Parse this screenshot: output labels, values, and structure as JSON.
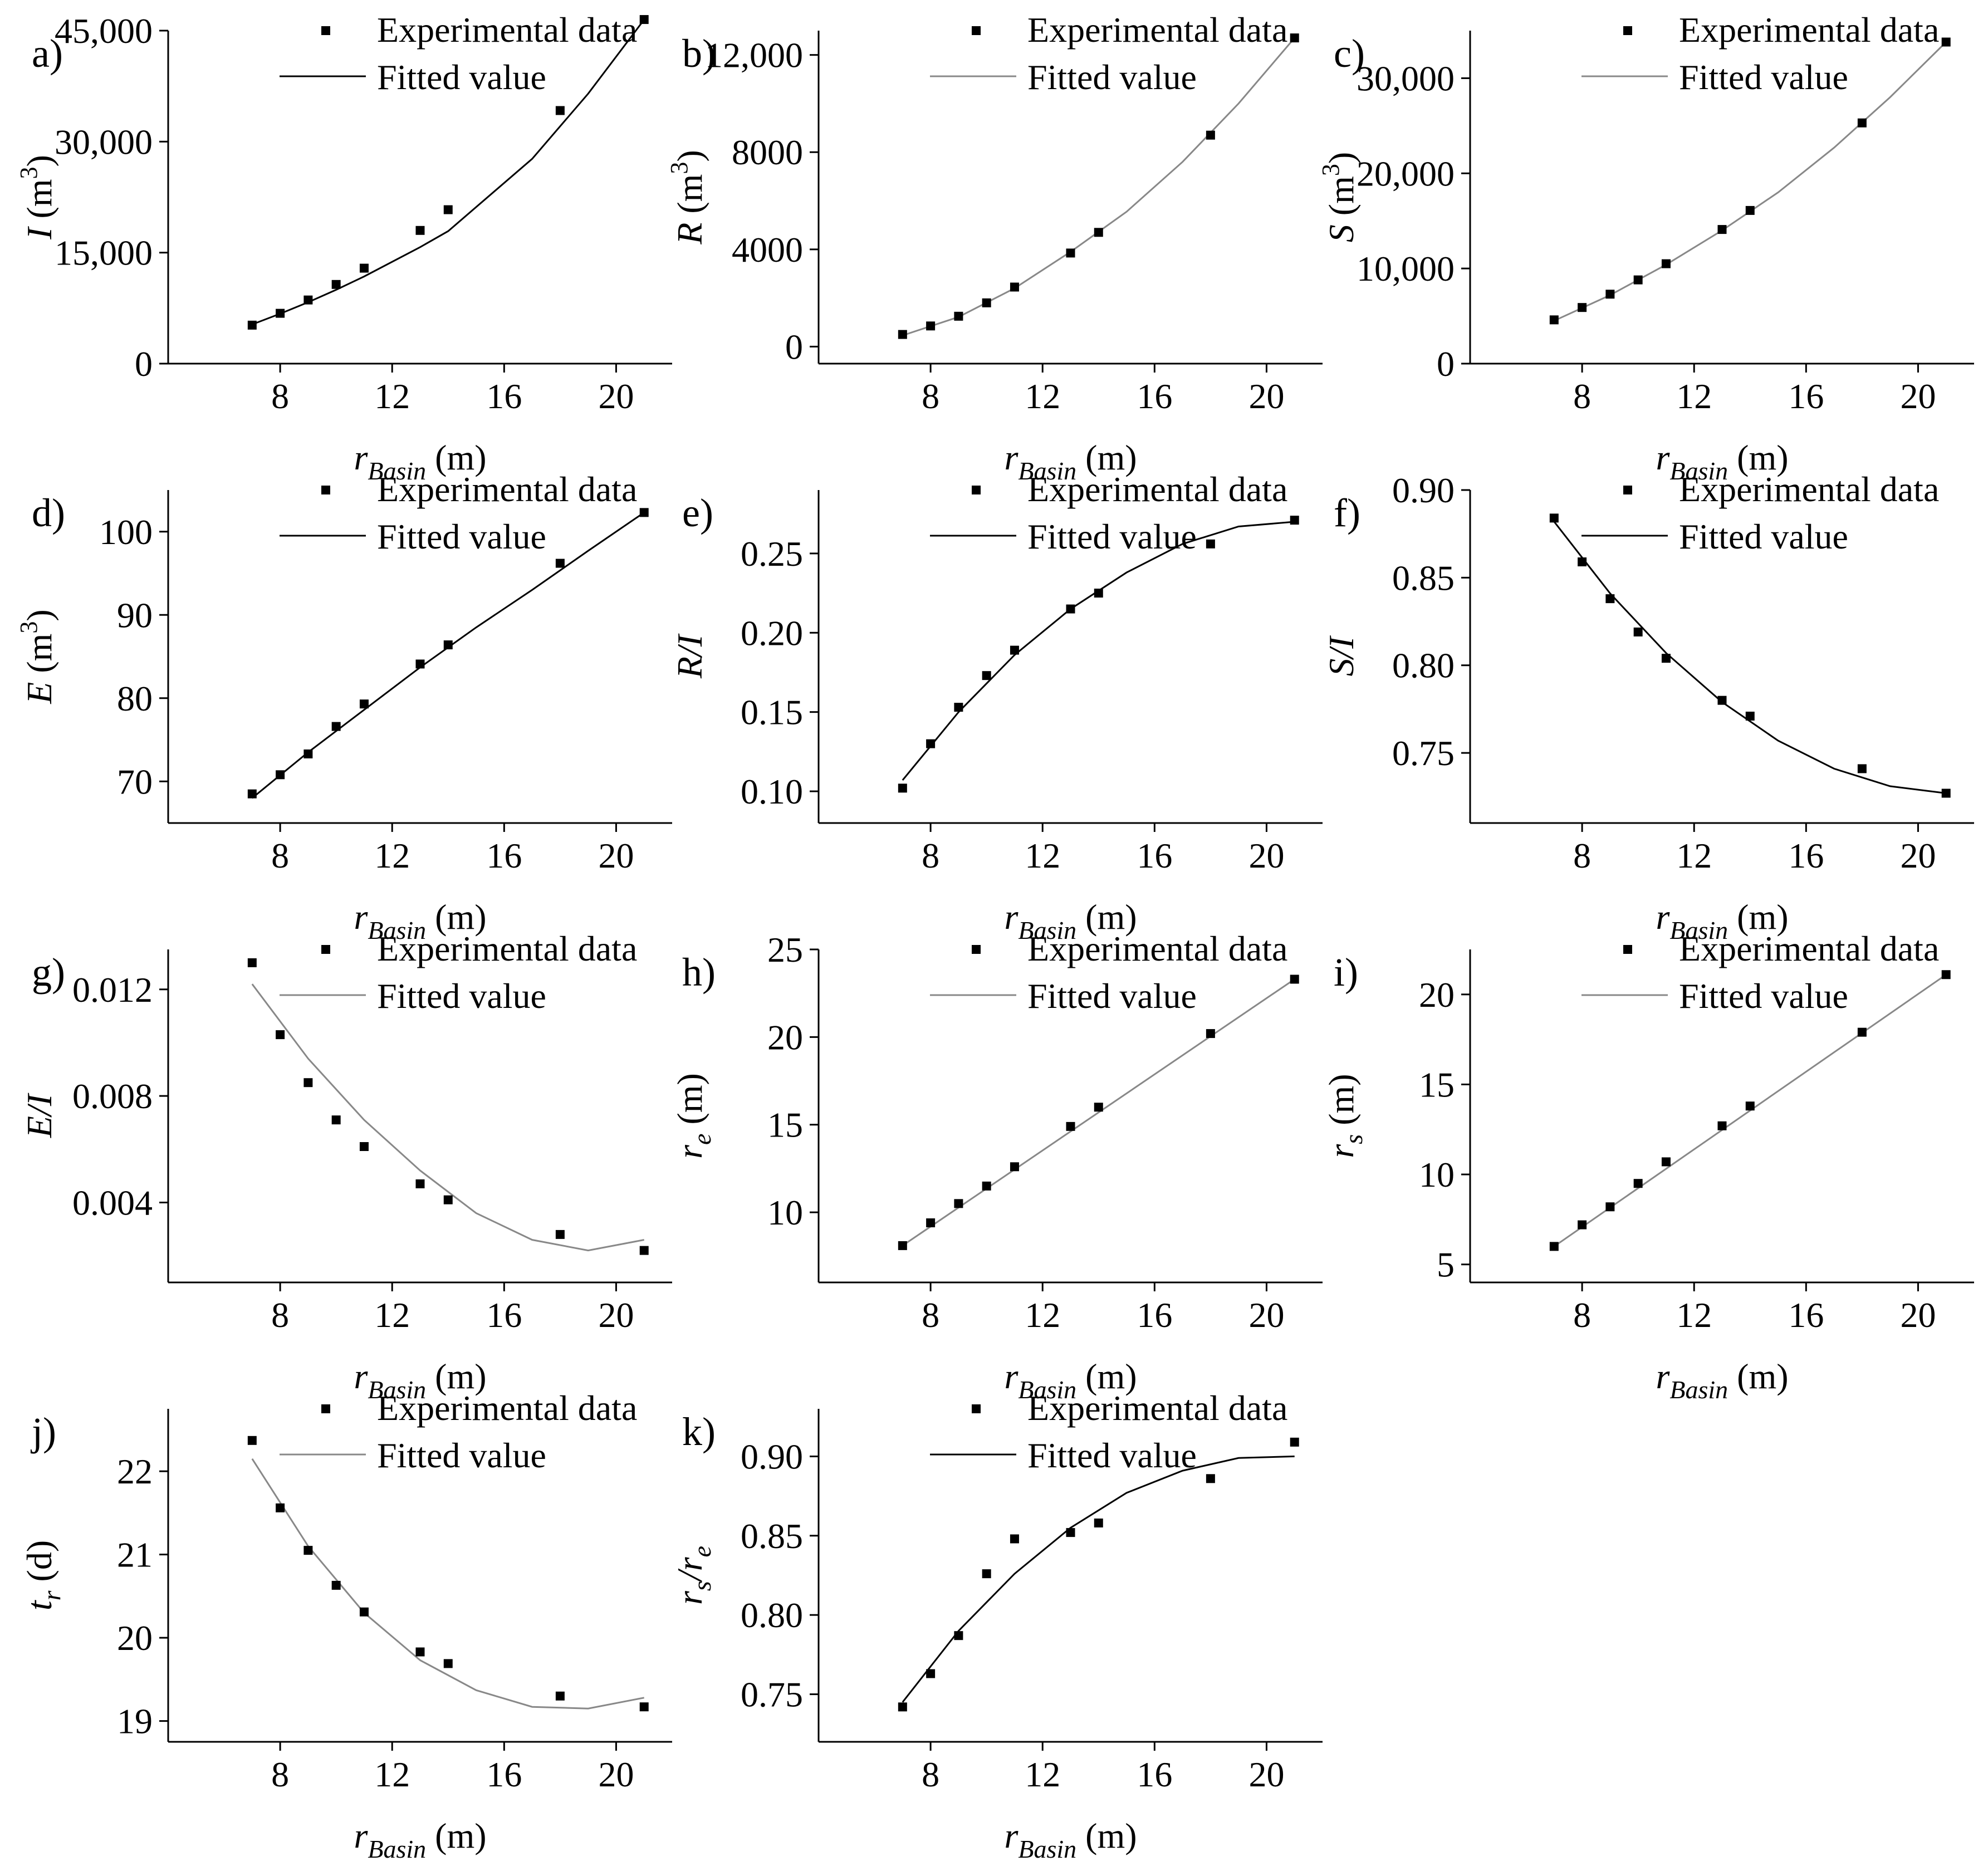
{
  "chart_data": [
    {
      "type": "scatter",
      "panel_label": "a)",
      "x": [
        7,
        8,
        9,
        10,
        11,
        13,
        14,
        18,
        21
      ],
      "y": [
        5200,
        6800,
        8600,
        10700,
        12900,
        18000,
        20800,
        34200,
        46500
      ],
      "fit": [
        5300,
        6740,
        8300,
        9980,
        11780,
        15740,
        17900,
        27670,
        36480,
        46480
      ],
      "fit_x": [
        7,
        8,
        9,
        10,
        11,
        13,
        14,
        17,
        19,
        21
      ],
      "xlim": [
        4,
        22
      ],
      "ylim": [
        0,
        45000
      ],
      "xticks": [
        "8",
        "12",
        "16",
        "20"
      ],
      "xtick_values": [
        8,
        12,
        16,
        20
      ],
      "yticks": [
        "0",
        "15,000",
        "30,000",
        "45,000"
      ],
      "ytick_values": [
        0,
        15000,
        30000,
        45000
      ],
      "xlabel": "r",
      "xlabel_sub": "Basin",
      "xlabel_unit": " (m)",
      "ylabel": "I",
      "ylabel_unit": " (m",
      "ylabel_sup": "3",
      "ylabel_close": ")",
      "legend": [
        "Experimental data",
        "Fitted value"
      ],
      "fit_color": "#000000"
    },
    {
      "type": "scatter",
      "panel_label": "b)",
      "x": [
        7,
        8,
        9,
        10,
        11,
        13,
        14,
        18,
        21
      ],
      "y": [
        500,
        850,
        1250,
        1800,
        2450,
        3850,
        4700,
        8700,
        12700
      ],
      "fit_x": [
        7,
        9,
        11,
        13,
        15,
        17,
        19,
        21
      ],
      "fit": [
        460,
        1220,
        2400,
        3900,
        5550,
        7600,
        10000,
        12700
      ],
      "xlim": [
        4,
        22
      ],
      "ylim": [
        -700,
        13000
      ],
      "xticks": [
        "8",
        "12",
        "16",
        "20"
      ],
      "xtick_values": [
        8,
        12,
        16,
        20
      ],
      "yticks": [
        "0",
        "4000",
        "8000",
        "12,000"
      ],
      "ytick_values": [
        0,
        4000,
        8000,
        12000
      ],
      "xlabel": "r",
      "xlabel_sub": "Basin",
      "xlabel_unit": " (m)",
      "ylabel": "R",
      "ylabel_unit": " (m",
      "ylabel_sup": "3",
      "ylabel_close": ")",
      "legend": [
        "Experimental data",
        "Fitted value"
      ],
      "fit_color": "#888888"
    },
    {
      "type": "scatter",
      "panel_label": "c)",
      "x": [
        7,
        8,
        9,
        10,
        11,
        13,
        14,
        18,
        21
      ],
      "y": [
        4600,
        5900,
        7300,
        8800,
        10500,
        14100,
        16100,
        25300,
        33800
      ],
      "fit_x": [
        7,
        9,
        11,
        13,
        15,
        17,
        19,
        21
      ],
      "fit": [
        4500,
        7200,
        10400,
        14000,
        18000,
        22700,
        28000,
        33800
      ],
      "xlim": [
        4,
        22
      ],
      "ylim": [
        0,
        35000
      ],
      "xticks": [
        "8",
        "12",
        "16",
        "20"
      ],
      "xtick_values": [
        8,
        12,
        16,
        20
      ],
      "yticks": [
        "0",
        "10,000",
        "20,000",
        "30,000"
      ],
      "ytick_values": [
        0,
        10000,
        20000,
        30000
      ],
      "xlabel": "r",
      "xlabel_sub": "Basin",
      "xlabel_unit": " (m)",
      "ylabel": "S",
      "ylabel_unit": " (m",
      "ylabel_sup": "3",
      "ylabel_close": ")",
      "legend": [
        "Experimental data",
        "Fitted value"
      ],
      "fit_color": "#888888"
    },
    {
      "type": "scatter",
      "panel_label": "d)",
      "x": [
        7,
        8,
        9,
        10,
        11,
        13,
        14,
        18,
        21
      ],
      "y": [
        68.5,
        70.8,
        73.3,
        76.6,
        79.3,
        84.1,
        86.4,
        96.2,
        102.3
      ],
      "fit_x": [
        7,
        9,
        11,
        13,
        15,
        17,
        19,
        21
      ],
      "fit": [
        68.0,
        73.5,
        78.6,
        83.7,
        88.5,
        93.0,
        97.7,
        102.3
      ],
      "xlim": [
        4,
        22
      ],
      "ylim": [
        65,
        105
      ],
      "xticks": [
        "8",
        "12",
        "16",
        "20"
      ],
      "xtick_values": [
        8,
        12,
        16,
        20
      ],
      "yticks": [
        "70",
        "80",
        "90",
        "100"
      ],
      "ytick_values": [
        70,
        80,
        90,
        100
      ],
      "xlabel": "r",
      "xlabel_sub": "Basin",
      "xlabel_unit": " (m)",
      "ylabel": "E",
      "ylabel_unit": " (m",
      "ylabel_sup": "3",
      "ylabel_close": ")",
      "legend": [
        "Experimental data",
        "Fitted value"
      ],
      "fit_color": "#000000"
    },
    {
      "type": "scatter",
      "panel_label": "e)",
      "x": [
        7,
        8,
        9,
        10,
        11,
        13,
        14,
        18,
        21
      ],
      "y": [
        0.102,
        0.13,
        0.153,
        0.173,
        0.189,
        0.215,
        0.225,
        0.256,
        0.271
      ],
      "fit_x": [
        7,
        9,
        11,
        13,
        15,
        17,
        19,
        21
      ],
      "fit": [
        0.107,
        0.15,
        0.186,
        0.215,
        0.238,
        0.256,
        0.267,
        0.27
      ],
      "xlim": [
        4,
        22
      ],
      "ylim": [
        0.08,
        0.29
      ],
      "xticks": [
        "8",
        "12",
        "16",
        "20"
      ],
      "xtick_values": [
        8,
        12,
        16,
        20
      ],
      "yticks": [
        "0.10",
        "0.15",
        "0.20",
        "0.25"
      ],
      "ytick_values": [
        0.1,
        0.15,
        0.2,
        0.25
      ],
      "xlabel": "r",
      "xlabel_sub": "Basin",
      "xlabel_unit": " (m)",
      "ylabel": "R/I",
      "ylabel_unit": "",
      "ylabel_sup": "",
      "ylabel_close": "",
      "legend": [
        "Experimental data",
        "Fitted value"
      ],
      "fit_color": "#000000"
    },
    {
      "type": "scatter",
      "panel_label": "f)",
      "x": [
        7,
        8,
        9,
        10,
        11,
        13,
        14,
        18,
        21
      ],
      "y": [
        0.884,
        0.859,
        0.838,
        0.819,
        0.804,
        0.78,
        0.771,
        0.741,
        0.727
      ],
      "fit_x": [
        7,
        9,
        11,
        13,
        15,
        17,
        19,
        21
      ],
      "fit": [
        0.882,
        0.841,
        0.807,
        0.779,
        0.757,
        0.741,
        0.731,
        0.727
      ],
      "xlim": [
        4,
        22
      ],
      "ylim": [
        0.71,
        0.9
      ],
      "xticks": [
        "8",
        "12",
        "16",
        "20"
      ],
      "xtick_values": [
        8,
        12,
        16,
        20
      ],
      "yticks": [
        "0.75",
        "0.80",
        "0.85",
        "0.90"
      ],
      "ytick_values": [
        0.75,
        0.8,
        0.85,
        0.9
      ],
      "xlabel": "r",
      "xlabel_sub": "Basin",
      "xlabel_unit": " (m)",
      "ylabel": "S/I",
      "ylabel_unit": "",
      "ylabel_sup": "",
      "ylabel_close": "",
      "legend": [
        "Experimental data",
        "Fitted value"
      ],
      "fit_color": "#000000"
    },
    {
      "type": "scatter",
      "panel_label": "g)",
      "x": [
        7,
        8,
        9,
        10,
        11,
        13,
        14,
        18,
        21
      ],
      "y": [
        0.013,
        0.0103,
        0.0085,
        0.0071,
        0.0061,
        0.0047,
        0.0041,
        0.0028,
        0.0022
      ],
      "fit_x": [
        7,
        9,
        11,
        13,
        15,
        17,
        19,
        21
      ],
      "fit": [
        0.0122,
        0.0094,
        0.0071,
        0.0052,
        0.0036,
        0.0026,
        0.0022,
        0.0026
      ],
      "xlim": [
        4,
        22
      ],
      "ylim": [
        0.001,
        0.0135
      ],
      "xticks": [
        "8",
        "12",
        "16",
        "20"
      ],
      "xtick_values": [
        8,
        12,
        16,
        20
      ],
      "yticks": [
        "0.004",
        "0.008",
        "0.012"
      ],
      "ytick_values": [
        0.004,
        0.008,
        0.012
      ],
      "xlabel": "r",
      "xlabel_sub": "Basin",
      "xlabel_unit": " (m)",
      "ylabel": "E/I",
      "ylabel_unit": "",
      "ylabel_sup": "",
      "ylabel_close": "",
      "legend": [
        "Experimental data",
        "Fitted value"
      ],
      "fit_color": "#888888"
    },
    {
      "type": "scatter",
      "panel_label": "h)",
      "x": [
        7,
        8,
        9,
        10,
        11,
        13,
        14,
        18,
        21
      ],
      "y": [
        8.1,
        9.4,
        10.5,
        11.5,
        12.6,
        14.9,
        16.0,
        20.2,
        23.3
      ],
      "fit_x": [
        7,
        21
      ],
      "fit": [
        8.1,
        23.3
      ],
      "xlim": [
        4,
        22
      ],
      "ylim": [
        6,
        25
      ],
      "xticks": [
        "8",
        "12",
        "16",
        "20"
      ],
      "xtick_values": [
        8,
        12,
        16,
        20
      ],
      "yticks": [
        "10",
        "15",
        "20",
        "25"
      ],
      "ytick_values": [
        10,
        15,
        20,
        25
      ],
      "xlabel": "r",
      "xlabel_sub": "Basin",
      "xlabel_unit": " (m)",
      "ylabel": "r",
      "ylabel_sub": "e",
      "ylabel_unit": " (m",
      "ylabel_sup": "",
      "ylabel_close": ")",
      "legend": [
        "Experimental data",
        "Fitted value"
      ],
      "fit_color": "#888888"
    },
    {
      "type": "scatter",
      "panel_label": "i)",
      "x": [
        7,
        8,
        9,
        10,
        11,
        13,
        14,
        18,
        21
      ],
      "y": [
        6.0,
        7.2,
        8.2,
        9.5,
        10.7,
        12.7,
        13.8,
        17.9,
        21.1
      ],
      "fit_x": [
        7,
        21
      ],
      "fit": [
        6.0,
        21.1
      ],
      "xlim": [
        4,
        22
      ],
      "ylim": [
        4,
        22.5
      ],
      "xticks": [
        "8",
        "12",
        "16",
        "20"
      ],
      "xtick_values": [
        8,
        12,
        16,
        20
      ],
      "yticks": [
        "5",
        "10",
        "15",
        "20"
      ],
      "ytick_values": [
        5,
        10,
        15,
        20
      ],
      "xlabel": "r",
      "xlabel_sub": "Basin",
      "xlabel_unit": " (m)",
      "ylabel": "r",
      "ylabel_sub": "s",
      "ylabel_unit": " (m",
      "ylabel_sup": "",
      "ylabel_close": ")",
      "legend": [
        "Experimental data",
        "Fitted value"
      ],
      "fit_color": "#888888"
    },
    {
      "type": "scatter",
      "panel_label": "j)",
      "x": [
        7,
        8,
        9,
        10,
        11,
        13,
        14,
        18,
        21
      ],
      "y": [
        22.37,
        21.56,
        21.05,
        20.63,
        20.31,
        19.83,
        19.69,
        19.3,
        19.17
      ],
      "fit_x": [
        7,
        9,
        11,
        13,
        15,
        17,
        19,
        21
      ],
      "fit": [
        22.15,
        21.1,
        20.3,
        19.73,
        19.37,
        19.17,
        19.15,
        19.28
      ],
      "xlim": [
        4,
        22
      ],
      "ylim": [
        18.75,
        22.75
      ],
      "xticks": [
        "8",
        "12",
        "16",
        "20"
      ],
      "xtick_values": [
        8,
        12,
        16,
        20
      ],
      "yticks": [
        "19",
        "20",
        "21",
        "22"
      ],
      "ytick_values": [
        19,
        20,
        21,
        22
      ],
      "xlabel": "r",
      "xlabel_sub": "Basin",
      "xlabel_unit": " (m)",
      "ylabel": "t",
      "ylabel_sub": "r",
      "ylabel_unit": " (d",
      "ylabel_sup": "",
      "ylabel_close": ")",
      "legend": [
        "Experimental data",
        "Fitted value"
      ],
      "fit_color": "#888888"
    },
    {
      "type": "scatter",
      "panel_label": "k)",
      "x": [
        7,
        8,
        9,
        10,
        11,
        13,
        14,
        18,
        21
      ],
      "y": [
        0.742,
        0.763,
        0.787,
        0.826,
        0.848,
        0.852,
        0.858,
        0.886,
        0.909
      ],
      "fit_x": [
        7,
        9,
        11,
        13,
        15,
        17,
        19,
        21
      ],
      "fit": [
        0.745,
        0.79,
        0.826,
        0.855,
        0.877,
        0.891,
        0.899,
        0.9
      ],
      "xlim": [
        4,
        22
      ],
      "ylim": [
        0.72,
        0.93
      ],
      "xticks": [
        "8",
        "12",
        "16",
        "20"
      ],
      "xtick_values": [
        8,
        12,
        16,
        20
      ],
      "yticks": [
        "0.75",
        "0.80",
        "0.85",
        "0.90"
      ],
      "ytick_values": [
        0.75,
        0.8,
        0.85,
        0.9
      ],
      "xlabel": "r",
      "xlabel_sub": "Basin",
      "xlabel_unit": " (m)",
      "ylabel": "r",
      "ylabel_sub": "s",
      "ylabel_slash": "/r",
      "ylabel_sub2": "e",
      "ylabel_unit": "",
      "ylabel_sup": "",
      "ylabel_close": "",
      "legend": [
        "Experimental data",
        "Fitted value"
      ],
      "fit_color": "#000000"
    }
  ]
}
